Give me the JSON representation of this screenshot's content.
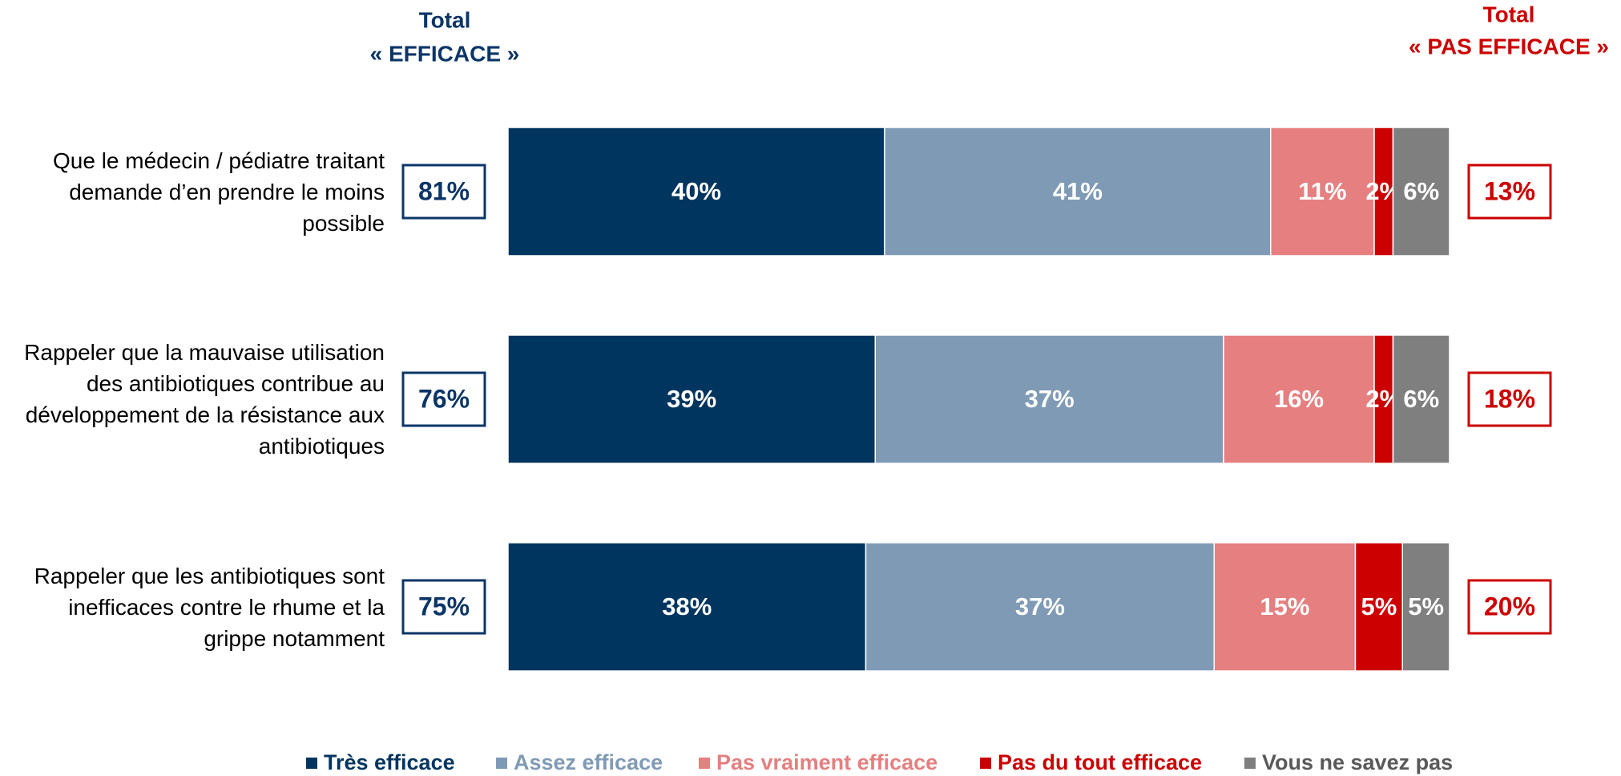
{
  "chart_data": {
    "type": "stacked-bar-horizontal",
    "categories": [
      "Que le médecin / pédiatre traitant demande d’en prendre le moins possible",
      "Rappeler que la mauvaise utilisation des antibiotiques contribue au développement de la résistance aux antibiotiques",
      "Rappeler que les antibiotiques sont inefficaces contre le rhume et la grippe notamment"
    ],
    "xlim": [
      0,
      100
    ],
    "series": [
      {
        "name": "Très efficace",
        "color": "#00355f",
        "values": [
          40,
          39,
          38
        ],
        "value_labels": [
          "40%",
          "39%",
          "38%"
        ]
      },
      {
        "name": "Assez efficace",
        "color": "#7f9ab5",
        "values": [
          41,
          37,
          37
        ],
        "value_labels": [
          "41%",
          "37%",
          "37%"
        ]
      },
      {
        "name": "Pas vraiment efficace",
        "color": "#e57f80",
        "values": [
          11,
          16,
          15
        ],
        "value_labels": [
          "11%",
          "16%",
          "15%"
        ]
      },
      {
        "name": "Pas du tout efficace",
        "color": "#cc0000",
        "values": [
          2,
          2,
          5
        ],
        "value_labels": [
          "2%",
          "2%",
          "5%"
        ]
      },
      {
        "name": "Vous ne savez pas",
        "color": "#7f7f7f",
        "values": [
          6,
          6,
          5
        ],
        "value_labels": [
          "6%",
          "6%",
          "5%"
        ]
      }
    ],
    "totals": [
      {
        "title_lines": [
          "Total",
          "« EFFICACE »"
        ],
        "color": "#0c3567",
        "values": [
          81,
          76,
          75
        ],
        "value_labels": [
          "81%",
          "76%",
          "75%"
        ]
      },
      {
        "title_lines": [
          "Total",
          "« PAS EFFICACE »"
        ],
        "color": "#cc0000",
        "values": [
          13,
          18,
          20
        ],
        "value_labels": [
          "13%",
          "18%",
          "20%"
        ]
      }
    ],
    "legend": "bottom"
  }
}
